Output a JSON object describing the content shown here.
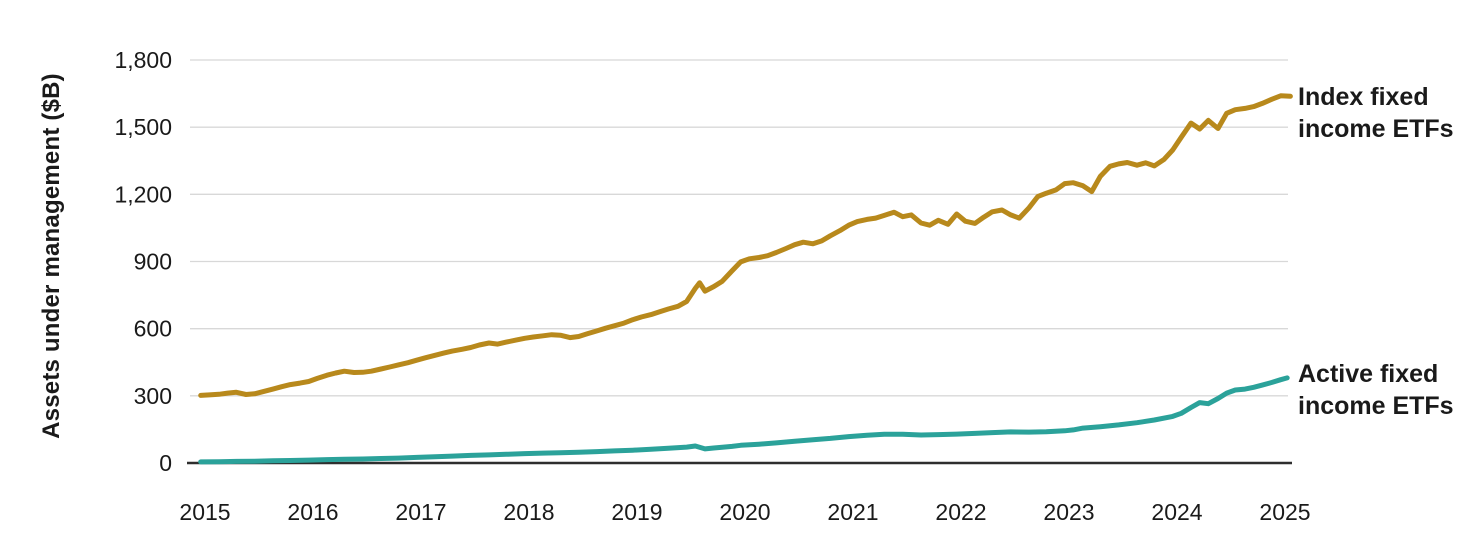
{
  "chart_data": {
    "type": "line",
    "title": "",
    "xlabel": "",
    "ylabel": "Assets under management ($B)",
    "ylim": [
      0,
      1800
    ],
    "xlim": [
      2014.95,
      2025.1
    ],
    "grid": "horizontal",
    "background_color": "#ffffff",
    "gridline_color": "#d8d8d8",
    "axis_line_color": "#2e2e2e",
    "text_color": "#1a1a1a",
    "legend_position": "right of line ends",
    "y_ticks": [
      {
        "label": "1,800",
        "value": 1800
      },
      {
        "label": "1,500",
        "value": 1500
      },
      {
        "label": "1,200",
        "value": 1200
      },
      {
        "label": "900",
        "value": 900
      },
      {
        "label": "600",
        "value": 600
      },
      {
        "label": "300",
        "value": 300
      },
      {
        "label": "0",
        "value": 0
      }
    ],
    "x_ticks": [
      {
        "label": "2015",
        "value": 2015
      },
      {
        "label": "2016",
        "value": 2016
      },
      {
        "label": "2017",
        "value": 2017
      },
      {
        "label": "2018",
        "value": 2018
      },
      {
        "label": "2019",
        "value": 2019
      },
      {
        "label": "2020",
        "value": 2020
      },
      {
        "label": "2021",
        "value": 2021
      },
      {
        "label": "2022",
        "value": 2022
      },
      {
        "label": "2023",
        "value": 2023
      },
      {
        "label": "2024",
        "value": 2024
      },
      {
        "label": "2025",
        "value": 2025
      }
    ],
    "series": [
      {
        "name": "Index fixed income ETFs",
        "color": "#b8891c",
        "points": [
          [
            2014.96,
            302
          ],
          [
            2015.04,
            304
          ],
          [
            2015.13,
            307
          ],
          [
            2015.21,
            312
          ],
          [
            2015.29,
            316
          ],
          [
            2015.38,
            306
          ],
          [
            2015.46,
            309
          ],
          [
            2015.54,
            319
          ],
          [
            2015.63,
            330
          ],
          [
            2015.71,
            341
          ],
          [
            2015.79,
            350
          ],
          [
            2015.88,
            357
          ],
          [
            2015.96,
            364
          ],
          [
            2016.04,
            378
          ],
          [
            2016.13,
            392
          ],
          [
            2016.21,
            402
          ],
          [
            2016.29,
            410
          ],
          [
            2016.38,
            404
          ],
          [
            2016.46,
            405
          ],
          [
            2016.54,
            410
          ],
          [
            2016.63,
            420
          ],
          [
            2016.71,
            429
          ],
          [
            2016.79,
            438
          ],
          [
            2016.88,
            448
          ],
          [
            2016.96,
            459
          ],
          [
            2017.04,
            470
          ],
          [
            2017.13,
            481
          ],
          [
            2017.21,
            491
          ],
          [
            2017.29,
            500
          ],
          [
            2017.38,
            508
          ],
          [
            2017.46,
            516
          ],
          [
            2017.54,
            527
          ],
          [
            2017.63,
            536
          ],
          [
            2017.71,
            531
          ],
          [
            2017.79,
            540
          ],
          [
            2017.88,
            549
          ],
          [
            2017.96,
            557
          ],
          [
            2018.04,
            563
          ],
          [
            2018.13,
            568
          ],
          [
            2018.21,
            573
          ],
          [
            2018.29,
            571
          ],
          [
            2018.38,
            560
          ],
          [
            2018.46,
            565
          ],
          [
            2018.54,
            577
          ],
          [
            2018.63,
            590
          ],
          [
            2018.71,
            602
          ],
          [
            2018.79,
            613
          ],
          [
            2018.88,
            625
          ],
          [
            2018.96,
            640
          ],
          [
            2019.04,
            652
          ],
          [
            2019.13,
            663
          ],
          [
            2019.21,
            676
          ],
          [
            2019.29,
            688
          ],
          [
            2019.38,
            700
          ],
          [
            2019.46,
            722
          ],
          [
            2019.54,
            780
          ],
          [
            2019.58,
            805
          ],
          [
            2019.63,
            768
          ],
          [
            2019.71,
            788
          ],
          [
            2019.79,
            812
          ],
          [
            2019.88,
            858
          ],
          [
            2019.96,
            898
          ],
          [
            2020.04,
            912
          ],
          [
            2020.13,
            918
          ],
          [
            2020.21,
            926
          ],
          [
            2020.29,
            940
          ],
          [
            2020.38,
            958
          ],
          [
            2020.46,
            975
          ],
          [
            2020.54,
            986
          ],
          [
            2020.63,
            979
          ],
          [
            2020.71,
            992
          ],
          [
            2020.79,
            1015
          ],
          [
            2020.88,
            1038
          ],
          [
            2020.96,
            1062
          ],
          [
            2021.04,
            1078
          ],
          [
            2021.13,
            1088
          ],
          [
            2021.21,
            1094
          ],
          [
            2021.29,
            1106
          ],
          [
            2021.38,
            1120
          ],
          [
            2021.46,
            1100
          ],
          [
            2021.54,
            1108
          ],
          [
            2021.63,
            1072
          ],
          [
            2021.71,
            1062
          ],
          [
            2021.79,
            1084
          ],
          [
            2021.88,
            1066
          ],
          [
            2021.96,
            1112
          ],
          [
            2022.04,
            1080
          ],
          [
            2022.13,
            1070
          ],
          [
            2022.21,
            1098
          ],
          [
            2022.29,
            1122
          ],
          [
            2022.38,
            1130
          ],
          [
            2022.46,
            1108
          ],
          [
            2022.54,
            1094
          ],
          [
            2022.63,
            1140
          ],
          [
            2022.71,
            1190
          ],
          [
            2022.79,
            1205
          ],
          [
            2022.88,
            1220
          ],
          [
            2022.96,
            1248
          ],
          [
            2023.04,
            1252
          ],
          [
            2023.13,
            1238
          ],
          [
            2023.21,
            1212
          ],
          [
            2023.29,
            1280
          ],
          [
            2023.38,
            1325
          ],
          [
            2023.46,
            1336
          ],
          [
            2023.54,
            1342
          ],
          [
            2023.63,
            1330
          ],
          [
            2023.71,
            1341
          ],
          [
            2023.79,
            1327
          ],
          [
            2023.88,
            1356
          ],
          [
            2023.96,
            1398
          ],
          [
            2024.04,
            1455
          ],
          [
            2024.13,
            1518
          ],
          [
            2024.21,
            1492
          ],
          [
            2024.29,
            1530
          ],
          [
            2024.38,
            1494
          ],
          [
            2024.46,
            1562
          ],
          [
            2024.54,
            1578
          ],
          [
            2024.63,
            1584
          ],
          [
            2024.71,
            1592
          ],
          [
            2024.79,
            1606
          ],
          [
            2024.88,
            1625
          ],
          [
            2024.96,
            1640
          ],
          [
            2025.05,
            1638
          ]
        ]
      },
      {
        "name": "Active fixed income ETFs",
        "color": "#2ba29a",
        "points": [
          [
            2014.96,
            5
          ],
          [
            2015.13,
            6
          ],
          [
            2015.29,
            7
          ],
          [
            2015.46,
            8
          ],
          [
            2015.63,
            10
          ],
          [
            2015.79,
            11
          ],
          [
            2015.96,
            13
          ],
          [
            2016.13,
            15
          ],
          [
            2016.29,
            17
          ],
          [
            2016.46,
            18
          ],
          [
            2016.63,
            20
          ],
          [
            2016.79,
            22
          ],
          [
            2016.96,
            25
          ],
          [
            2017.13,
            28
          ],
          [
            2017.29,
            31
          ],
          [
            2017.46,
            34
          ],
          [
            2017.63,
            36
          ],
          [
            2017.79,
            39
          ],
          [
            2017.96,
            42
          ],
          [
            2018.13,
            44
          ],
          [
            2018.29,
            46
          ],
          [
            2018.46,
            48
          ],
          [
            2018.63,
            51
          ],
          [
            2018.79,
            54
          ],
          [
            2018.96,
            57
          ],
          [
            2019.13,
            61
          ],
          [
            2019.29,
            66
          ],
          [
            2019.46,
            71
          ],
          [
            2019.54,
            76
          ],
          [
            2019.63,
            63
          ],
          [
            2019.71,
            67
          ],
          [
            2019.79,
            70
          ],
          [
            2019.88,
            74
          ],
          [
            2019.96,
            79
          ],
          [
            2020.13,
            84
          ],
          [
            2020.29,
            90
          ],
          [
            2020.46,
            97
          ],
          [
            2020.63,
            104
          ],
          [
            2020.79,
            110
          ],
          [
            2020.96,
            118
          ],
          [
            2021.13,
            124
          ],
          [
            2021.29,
            128
          ],
          [
            2021.46,
            128
          ],
          [
            2021.63,
            125
          ],
          [
            2021.79,
            127
          ],
          [
            2021.96,
            129
          ],
          [
            2022.13,
            132
          ],
          [
            2022.29,
            136
          ],
          [
            2022.46,
            139
          ],
          [
            2022.63,
            138
          ],
          [
            2022.79,
            140
          ],
          [
            2022.96,
            144
          ],
          [
            2023.04,
            148
          ],
          [
            2023.13,
            156
          ],
          [
            2023.29,
            162
          ],
          [
            2023.46,
            170
          ],
          [
            2023.63,
            180
          ],
          [
            2023.79,
            192
          ],
          [
            2023.96,
            208
          ],
          [
            2024.04,
            222
          ],
          [
            2024.13,
            248
          ],
          [
            2024.21,
            270
          ],
          [
            2024.29,
            265
          ],
          [
            2024.38,
            288
          ],
          [
            2024.46,
            312
          ],
          [
            2024.54,
            326
          ],
          [
            2024.63,
            330
          ],
          [
            2024.71,
            338
          ],
          [
            2024.79,
            348
          ],
          [
            2024.88,
            360
          ],
          [
            2024.96,
            372
          ],
          [
            2025.02,
            380
          ]
        ]
      }
    ]
  }
}
